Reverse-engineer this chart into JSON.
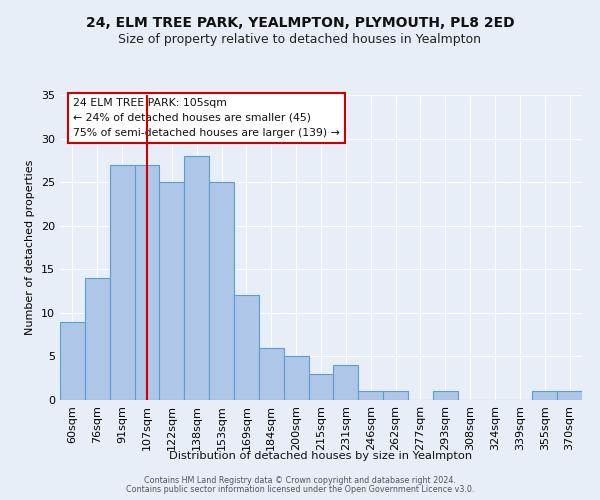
{
  "title": "24, ELM TREE PARK, YEALMPTON, PLYMOUTH, PL8 2ED",
  "subtitle": "Size of property relative to detached houses in Yealmpton",
  "xlabel": "Distribution of detached houses by size in Yealmpton",
  "ylabel": "Number of detached properties",
  "categories": [
    "60sqm",
    "76sqm",
    "91sqm",
    "107sqm",
    "122sqm",
    "138sqm",
    "153sqm",
    "169sqm",
    "184sqm",
    "200sqm",
    "215sqm",
    "231sqm",
    "246sqm",
    "262sqm",
    "277sqm",
    "293sqm",
    "308sqm",
    "324sqm",
    "339sqm",
    "355sqm",
    "370sqm"
  ],
  "values": [
    9,
    14,
    27,
    27,
    25,
    28,
    25,
    12,
    6,
    5,
    3,
    4,
    1,
    1,
    0,
    1,
    0,
    0,
    0,
    1,
    1
  ],
  "bar_color": "#aec6e8",
  "bar_edge_color": "#5a9fd4",
  "background_color": "#e8eef8",
  "grid_color": "#ffffff",
  "annotation_box_color": "#ffffff",
  "annotation_border_color": "#cc0000",
  "red_line_index": 3,
  "red_line_color": "#cc0000",
  "annotation_line1": "24 ELM TREE PARK: 105sqm",
  "annotation_line2": "← 24% of detached houses are smaller (45)",
  "annotation_line3": "75% of semi-detached houses are larger (139) →",
  "ylim": [
    0,
    35
  ],
  "yticks": [
    0,
    5,
    10,
    15,
    20,
    25,
    30,
    35
  ],
  "footer1": "Contains HM Land Registry data © Crown copyright and database right 2024.",
  "footer2": "Contains public sector information licensed under the Open Government Licence v3.0."
}
